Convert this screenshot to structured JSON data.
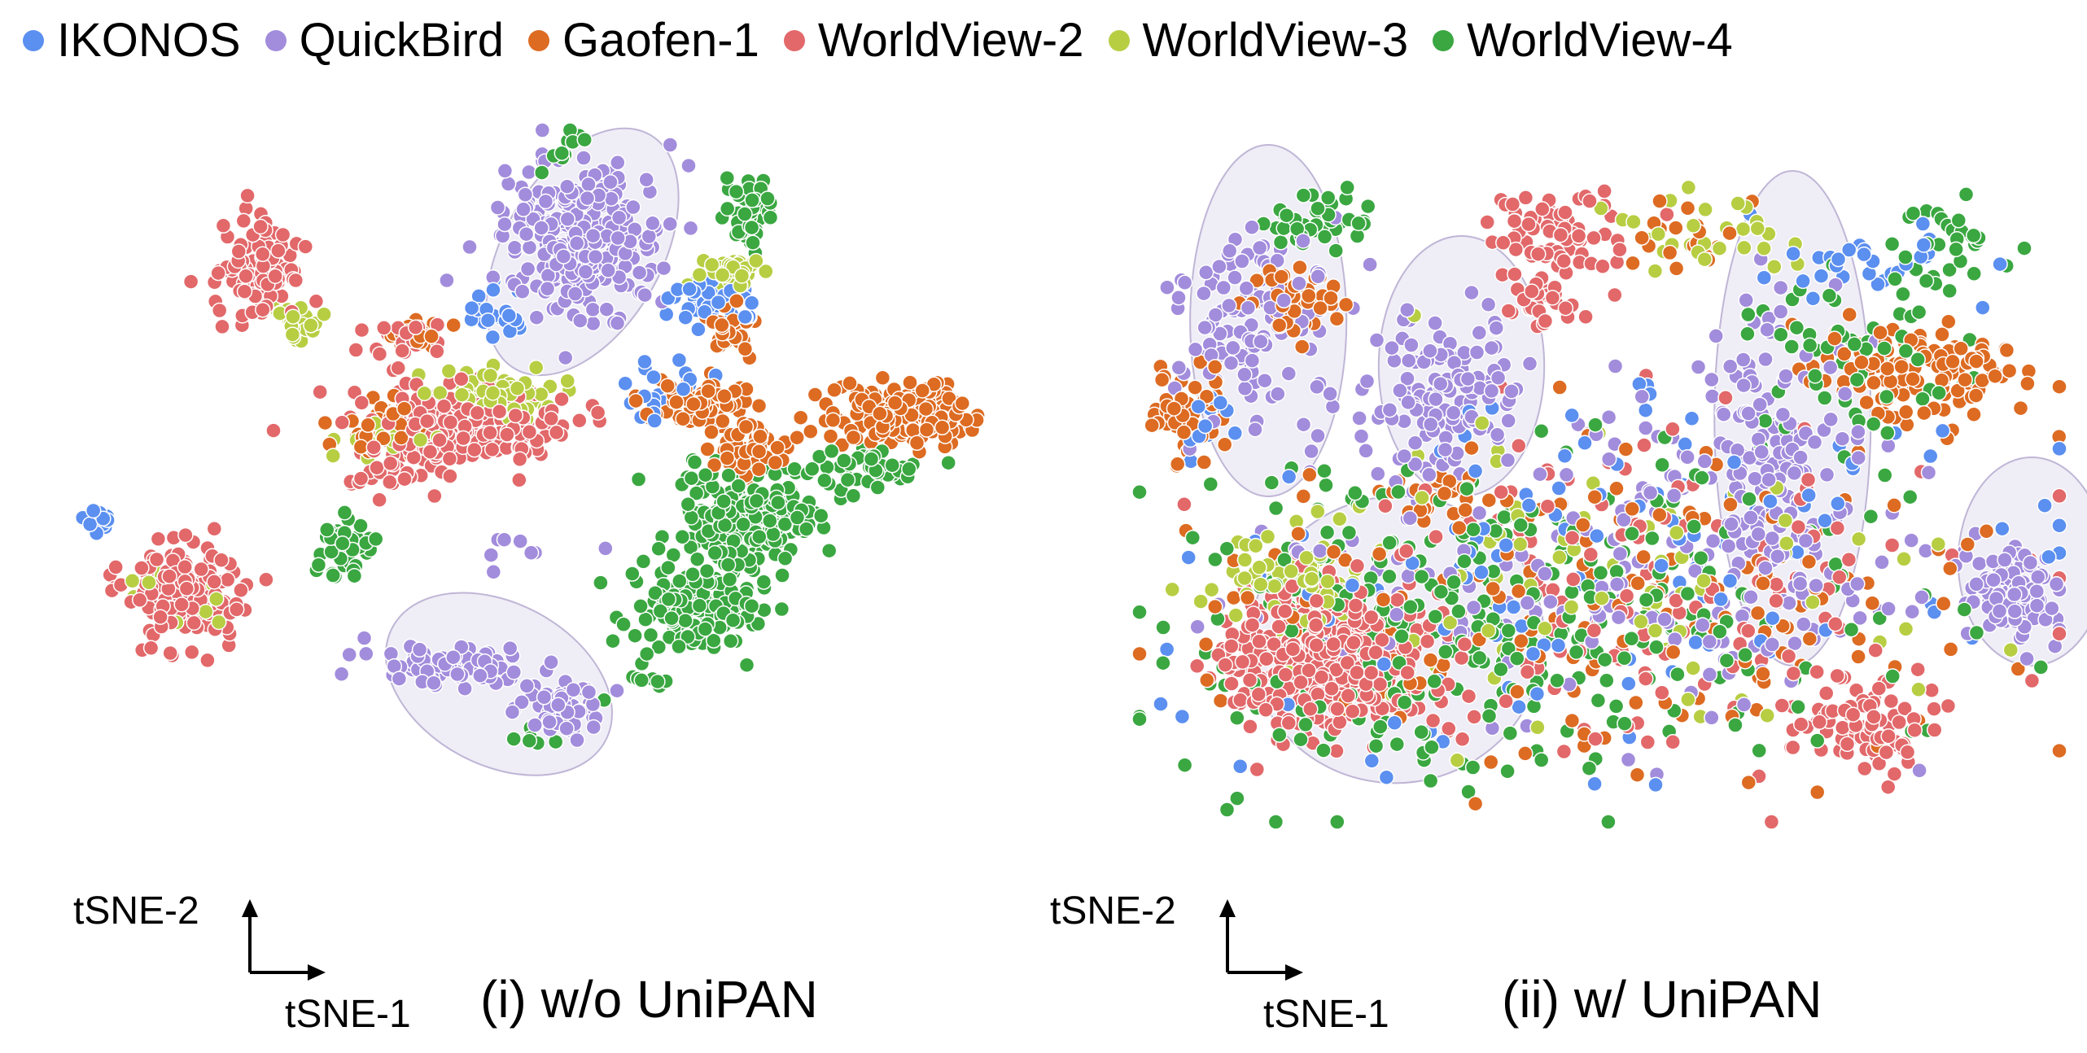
{
  "legend": [
    {
      "label": "IKONOS",
      "color": "#5b8ff0"
    },
    {
      "label": "QuickBird",
      "color": "#a28cdc"
    },
    {
      "label": "Gaofen-1",
      "color": "#dd6b22"
    },
    {
      "label": "WorldView-2",
      "color": "#e2686a"
    },
    {
      "label": "WorldView-3",
      "color": "#b7ce43"
    },
    {
      "label": "WorldView-4",
      "color": "#3aa741"
    }
  ],
  "chart_data": [
    {
      "type": "scatter",
      "title": "(i) w/o UniPAN",
      "xlabel": "tSNE-1",
      "ylabel": "tSNE-2",
      "series": [
        {
          "name": "IKONOS",
          "color": "#5b8ff0",
          "clusters": [
            [
              0.02,
              0.58,
              0.015,
              0.02,
              14
            ],
            [
              0.45,
              0.27,
              0.03,
              0.03,
              20
            ],
            [
              0.68,
              0.25,
              0.04,
              0.03,
              40
            ],
            [
              0.62,
              0.38,
              0.05,
              0.05,
              20
            ]
          ]
        },
        {
          "name": "QuickBird",
          "color": "#a28cdc",
          "clusters": [
            [
              0.54,
              0.16,
              0.07,
              0.09,
              300
            ],
            [
              0.4,
              0.79,
              0.07,
              0.025,
              80
            ],
            [
              0.52,
              0.86,
              0.04,
              0.03,
              60
            ],
            [
              0.47,
              0.6,
              0.05,
              0.04,
              8
            ]
          ]
        },
        {
          "name": "Gaofen-1",
          "color": "#dd6b22",
          "clusters": [
            [
              0.66,
              0.4,
              0.05,
              0.03,
              80
            ],
            [
              0.72,
              0.47,
              0.04,
              0.04,
              60
            ],
            [
              0.88,
              0.42,
              0.06,
              0.04,
              160
            ],
            [
              0.33,
              0.43,
              0.05,
              0.04,
              40
            ],
            [
              0.36,
              0.3,
              0.03,
              0.02,
              20
            ],
            [
              0.7,
              0.3,
              0.02,
              0.03,
              30
            ]
          ]
        },
        {
          "name": "WorldView-2",
          "color": "#e2686a",
          "clusters": [
            [
              0.19,
              0.21,
              0.04,
              0.06,
              100
            ],
            [
              0.41,
              0.44,
              0.09,
              0.05,
              220
            ],
            [
              0.11,
              0.68,
              0.05,
              0.06,
              160
            ],
            [
              0.35,
              0.31,
              0.03,
              0.02,
              30
            ],
            [
              0.33,
              0.52,
              0.04,
              0.03,
              20
            ]
          ]
        },
        {
          "name": "WorldView-3",
          "color": "#b7ce43",
          "clusters": [
            [
              0.44,
              0.39,
              0.05,
              0.03,
              70
            ],
            [
              0.23,
              0.28,
              0.02,
              0.03,
              20
            ],
            [
              0.1,
              0.68,
              0.04,
              0.04,
              14
            ],
            [
              0.7,
              0.21,
              0.03,
              0.02,
              40
            ],
            [
              0.33,
              0.46,
              0.04,
              0.02,
              20
            ]
          ]
        },
        {
          "name": "WorldView-4",
          "color": "#3aa741",
          "clusters": [
            [
              0.72,
              0.58,
              0.06,
              0.07,
              250
            ],
            [
              0.66,
              0.71,
              0.06,
              0.05,
              140
            ],
            [
              0.72,
              0.12,
              0.02,
              0.05,
              50
            ],
            [
              0.28,
              0.62,
              0.025,
              0.04,
              40
            ],
            [
              0.52,
              0.02,
              0.02,
              0.02,
              10
            ],
            [
              0.6,
              0.82,
              0.04,
              0.02,
              10
            ],
            [
              0.85,
              0.5,
              0.05,
              0.03,
              40
            ],
            [
              0.49,
              0.9,
              0.02,
              0.02,
              6
            ]
          ]
        }
      ],
      "highlight_groups": [
        [
          0.54,
          0.18,
          0.085,
          0.2,
          30
        ],
        [
          0.45,
          0.82,
          0.13,
          0.12,
          28
        ]
      ]
    },
    {
      "type": "scatter",
      "title": "(ii) w/ UniPAN",
      "xlabel": "tSNE-1",
      "ylabel": "tSNE-2",
      "series": [
        {
          "name": "IKONOS",
          "color": "#5b8ff0",
          "clusters": [
            [
              0.5,
              0.6,
              0.35,
              0.25,
              130
            ],
            [
              0.08,
              0.38,
              0.05,
              0.06,
              12
            ],
            [
              0.8,
              0.15,
              0.1,
              0.05,
              30
            ]
          ]
        },
        {
          "name": "QuickBird",
          "color": "#a28cdc",
          "clusters": [
            [
              0.13,
              0.25,
              0.07,
              0.13,
              130
            ],
            [
              0.33,
              0.33,
              0.07,
              0.09,
              130
            ],
            [
              0.68,
              0.45,
              0.06,
              0.18,
              150
            ],
            [
              0.95,
              0.65,
              0.04,
              0.06,
              110
            ],
            [
              0.5,
              0.6,
              0.3,
              0.22,
              200
            ]
          ]
        },
        {
          "name": "Gaofen-1",
          "color": "#dd6b22",
          "clusters": [
            [
              0.85,
              0.31,
              0.1,
              0.06,
              120
            ],
            [
              0.05,
              0.37,
              0.04,
              0.06,
              50
            ],
            [
              0.17,
              0.2,
              0.04,
              0.04,
              50
            ],
            [
              0.5,
              0.65,
              0.35,
              0.2,
              180
            ],
            [
              0.32,
              0.5,
              0.04,
              0.03,
              20
            ],
            [
              0.6,
              0.1,
              0.05,
              0.05,
              20
            ]
          ]
        },
        {
          "name": "WorldView-2",
          "color": "#e2686a",
          "clusters": [
            [
              0.2,
              0.75,
              0.09,
              0.09,
              400
            ],
            [
              0.45,
              0.1,
              0.08,
              0.06,
              80
            ],
            [
              0.79,
              0.85,
              0.05,
              0.07,
              80
            ],
            [
              0.53,
              0.65,
              0.3,
              0.2,
              150
            ],
            [
              0.44,
              0.2,
              0.03,
              0.04,
              30
            ]
          ]
        },
        {
          "name": "WorldView-3",
          "color": "#b7ce43",
          "clusters": [
            [
              0.18,
              0.63,
              0.06,
              0.05,
              60
            ],
            [
              0.5,
              0.63,
              0.3,
              0.2,
              90
            ],
            [
              0.62,
              0.1,
              0.08,
              0.06,
              30
            ]
          ]
        },
        {
          "name": "WorldView-4",
          "color": "#3aa741",
          "clusters": [
            [
              0.3,
              0.7,
              0.25,
              0.2,
              250
            ],
            [
              0.55,
              0.68,
              0.3,
              0.2,
              100
            ],
            [
              0.2,
              0.08,
              0.05,
              0.04,
              40
            ],
            [
              0.77,
              0.3,
              0.1,
              0.12,
              60
            ],
            [
              0.88,
              0.1,
              0.06,
              0.05,
              30
            ]
          ]
        }
      ],
      "highlight_groups": [
        [
          0.14,
          0.23,
          0.085,
          0.27,
          0
        ],
        [
          0.35,
          0.3,
          0.09,
          0.2,
          0
        ],
        [
          0.71,
          0.38,
          0.085,
          0.38,
          0
        ],
        [
          0.97,
          0.6,
          0.08,
          0.16,
          0
        ],
        [
          0.28,
          0.72,
          0.16,
          0.22,
          -15
        ]
      ]
    }
  ]
}
